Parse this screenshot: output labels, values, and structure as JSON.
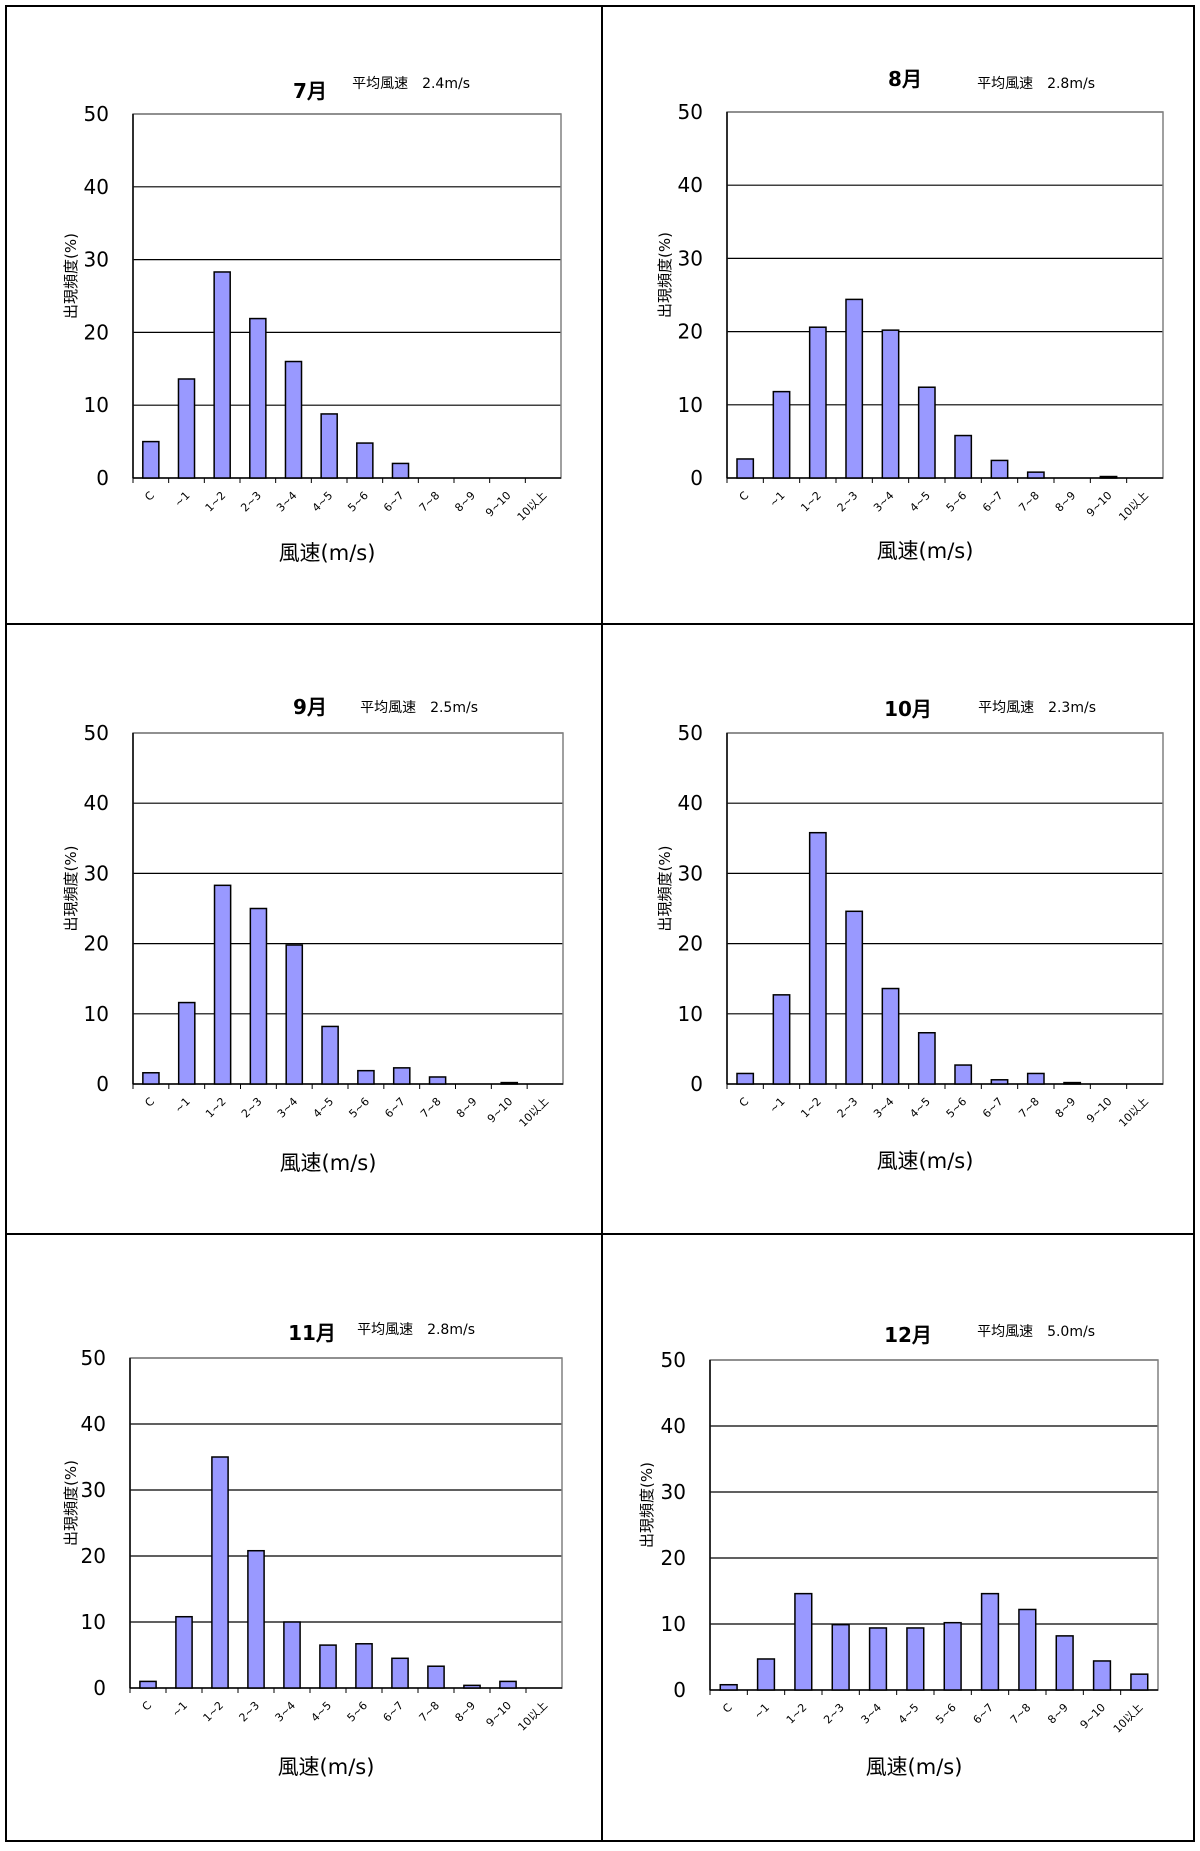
{
  "categories": [
    "C",
    "~1",
    "1~2",
    "2~3",
    "3~4",
    "4~5",
    "5~6",
    "6~7",
    "7~8",
    "8~9",
    "9~10",
    "10以上"
  ],
  "xlabel": "風速(m/s)",
  "ylabel": "出現頻度(%)",
  "yticks": [
    "0",
    "10",
    "20",
    "30",
    "40",
    "50"
  ],
  "colors": {
    "bar": "#9999ff",
    "bar_stroke": "#000000",
    "grid": "#000000",
    "plot_border": "#808080"
  },
  "chart_data": [
    {
      "type": "bar",
      "title": "7月",
      "subtitle": "平均風速　2.4m/s",
      "xlabel": "風速(m/s)",
      "ylabel": "出現頻度(%)",
      "ylim": [
        0,
        50
      ],
      "grid": true,
      "categories": [
        "C",
        "~1",
        "1~2",
        "2~3",
        "3~4",
        "4~5",
        "5~6",
        "6~7",
        "7~8",
        "8~9",
        "9~10",
        "10以上"
      ],
      "values": [
        5.0,
        13.6,
        28.3,
        21.9,
        16.0,
        8.8,
        4.8,
        2.0,
        0,
        0,
        0,
        0
      ]
    },
    {
      "type": "bar",
      "title": "8月",
      "subtitle": "平均風速　2.8m/s",
      "xlabel": "風速(m/s)",
      "ylabel": "出現頻度(%)",
      "ylim": [
        0,
        50
      ],
      "grid": true,
      "categories": [
        "C",
        "~1",
        "1~2",
        "2~3",
        "3~4",
        "4~5",
        "5~6",
        "6~7",
        "7~8",
        "8~9",
        "9~10",
        "10以上"
      ],
      "values": [
        2.6,
        11.8,
        20.6,
        24.4,
        20.2,
        12.4,
        5.8,
        2.4,
        0.8,
        0,
        0.2,
        0
      ]
    },
    {
      "type": "bar",
      "title": "9月",
      "subtitle": "平均風速　2.5m/s",
      "xlabel": "風速(m/s)",
      "ylabel": "出現頻度(%)",
      "ylim": [
        0,
        50
      ],
      "grid": true,
      "categories": [
        "C",
        "~1",
        "1~2",
        "2~3",
        "3~4",
        "4~5",
        "5~6",
        "6~7",
        "7~8",
        "8~9",
        "9~10",
        "10以上"
      ],
      "values": [
        1.6,
        11.6,
        28.3,
        25.0,
        19.8,
        8.2,
        1.9,
        2.3,
        1.0,
        0,
        0.2,
        0
      ]
    },
    {
      "type": "bar",
      "title": "10月",
      "subtitle": "平均風速　2.3m/s",
      "xlabel": "風速(m/s)",
      "ylabel": "出現頻度(%)",
      "ylim": [
        0,
        50
      ],
      "grid": true,
      "categories": [
        "C",
        "~1",
        "1~2",
        "2~3",
        "3~4",
        "4~5",
        "5~6",
        "6~7",
        "7~8",
        "8~9",
        "9~10",
        "10以上"
      ],
      "values": [
        1.5,
        12.7,
        35.8,
        24.6,
        13.6,
        7.3,
        2.7,
        0.6,
        1.5,
        0.2,
        0,
        0
      ]
    },
    {
      "type": "bar",
      "title": "11月",
      "subtitle": "平均風速　2.8m/s",
      "xlabel": "風速(m/s)",
      "ylabel": "出現頻度(%)",
      "ylim": [
        0,
        50
      ],
      "grid": true,
      "categories": [
        "C",
        "~1",
        "1~2",
        "2~3",
        "3~4",
        "4~5",
        "5~6",
        "6~7",
        "7~8",
        "8~9",
        "9~10",
        "10以上"
      ],
      "values": [
        1.0,
        10.8,
        35.0,
        20.8,
        10.0,
        6.5,
        6.7,
        4.5,
        3.3,
        0.4,
        1.0,
        0
      ]
    },
    {
      "type": "bar",
      "title": "12月",
      "subtitle": "平均風速　5.0m/s",
      "xlabel": "風速(m/s)",
      "ylabel": "出現頻度(%)",
      "ylim": [
        0,
        50
      ],
      "grid": true,
      "categories": [
        "C",
        "~1",
        "1~2",
        "2~3",
        "3~4",
        "4~5",
        "5~6",
        "6~7",
        "7~8",
        "8~9",
        "9~10",
        "10以上"
      ],
      "values": [
        0.8,
        4.7,
        14.6,
        9.9,
        9.4,
        9.4,
        10.2,
        14.6,
        12.2,
        8.2,
        4.4,
        2.4
      ]
    }
  ]
}
